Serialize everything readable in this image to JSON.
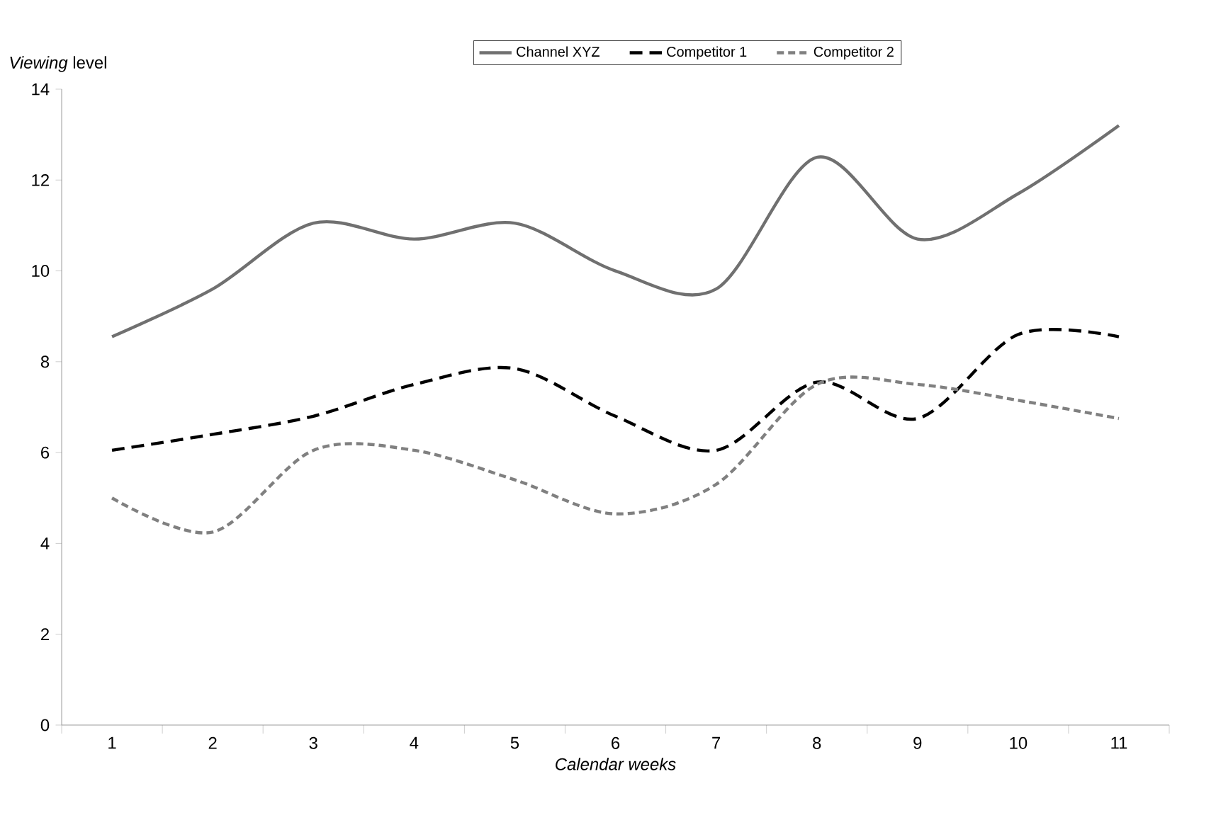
{
  "chart_data": {
    "type": "line",
    "xlabel": "Calendar weeks",
    "ylabel": "*Viewing* level",
    "categories": [
      "1",
      "2",
      "3",
      "4",
      "5",
      "6",
      "7",
      "8",
      "9",
      "10",
      "11"
    ],
    "series": [
      {
        "name": "Channel XYZ",
        "color": "#707070",
        "line_style": "solid",
        "values": [
          8.55,
          9.6,
          11.05,
          10.7,
          11.05,
          10.0,
          9.6,
          12.5,
          10.7,
          11.7,
          13.2
        ]
      },
      {
        "name": "Competitor 1",
        "color": "#000000",
        "line_style": "dashed",
        "values": [
          6.05,
          6.4,
          6.8,
          7.5,
          7.85,
          6.8,
          6.05,
          7.55,
          6.75,
          8.6,
          8.55
        ]
      },
      {
        "name": "Competitor 2",
        "color": "#808080",
        "line_style": "dashed",
        "values": [
          5.0,
          4.25,
          6.05,
          6.05,
          5.4,
          4.65,
          5.3,
          7.5,
          7.5,
          7.15,
          6.75
        ]
      }
    ],
    "ylim": [
      0,
      14
    ],
    "yticks": [
      0,
      2,
      4,
      6,
      8,
      10,
      12,
      14
    ],
    "legend": "top"
  }
}
